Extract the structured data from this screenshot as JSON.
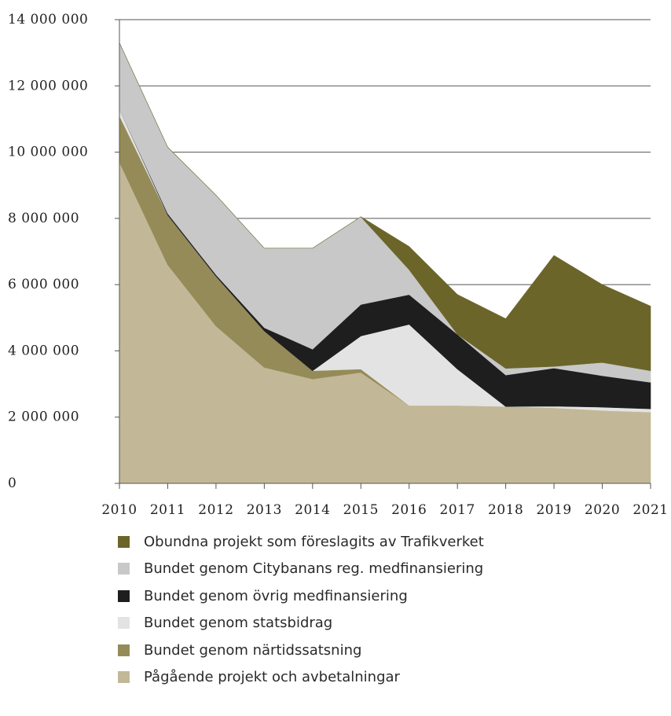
{
  "chart_data": {
    "type": "area",
    "stacked": true,
    "title": "",
    "xlabel": "",
    "ylabel": "",
    "ylim": [
      0,
      14000000
    ],
    "yticks": [
      0,
      2000000,
      4000000,
      6000000,
      8000000,
      10000000,
      12000000,
      14000000
    ],
    "ytick_labels": [
      "0",
      "2 000 000",
      "4 000 000",
      "6 000 000",
      "8 000 000",
      "10 000 000",
      "12 000 000",
      "14 000 000"
    ],
    "grid": "horizontal",
    "legend_position": "bottom",
    "x": [
      "2010",
      "2011",
      "2012",
      "2013",
      "2014",
      "2015",
      "2016",
      "2017",
      "2018",
      "2019",
      "2020",
      "2021"
    ],
    "series": [
      {
        "name": "Pågående projekt och avbetalningar",
        "color": "#c2b897",
        "values": [
          9700000,
          6600000,
          4750000,
          3500000,
          3150000,
          3350000,
          2350000,
          2350000,
          2320000,
          2280000,
          2200000,
          2150000
        ]
      },
      {
        "name": "Bundet genom närtidssatsning",
        "color": "#958b58",
        "values": [
          1400000,
          1500000,
          1500000,
          1100000,
          250000,
          100000,
          0,
          0,
          0,
          0,
          0,
          0
        ]
      },
      {
        "name": "Bundet genom statsbidrag",
        "color": "#e3e3e3",
        "values": [
          200000,
          0,
          0,
          0,
          0,
          1000000,
          2450000,
          1100000,
          0,
          50000,
          100000,
          100000
        ]
      },
      {
        "name": "Bundet genom övrig medfinansiering",
        "color": "#1e1e1e",
        "values": [
          0,
          50000,
          50000,
          100000,
          650000,
          950000,
          900000,
          1050000,
          950000,
          1150000,
          950000,
          800000
        ]
      },
      {
        "name": "Bundet genom Citybanans reg. medfinansiering",
        "color": "#c8c8c8",
        "values": [
          2000000,
          2000000,
          2400000,
          2400000,
          3050000,
          2650000,
          750000,
          0,
          200000,
          50000,
          400000,
          350000
        ]
      },
      {
        "name": "Obundna projekt som föreslagits av Trafikverket",
        "color": "#6c652a",
        "values": [
          0,
          0,
          0,
          0,
          0,
          0,
          700000,
          1200000,
          1500000,
          3350000,
          2350000,
          1950000
        ]
      }
    ]
  }
}
